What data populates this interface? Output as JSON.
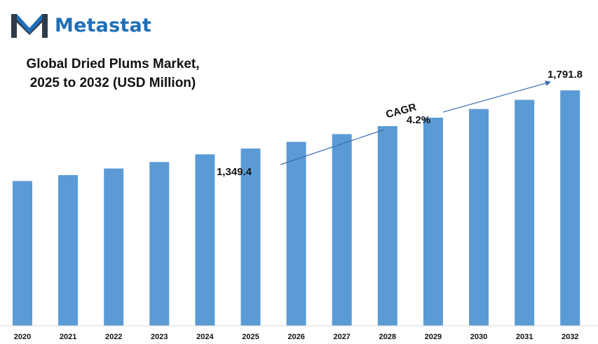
{
  "brand": {
    "name": "Metastat",
    "logo_icon": "metastat-m-logo-icon",
    "colors": {
      "dark": "#2e3b4a",
      "blue": "#1f6fb8"
    }
  },
  "title_lines": [
    "Global Dried Plums Market,",
    "2025 to 2032 (USD Million)"
  ],
  "annotations": {
    "start_label": "1,349.4",
    "end_label": "1,791.8",
    "cagr_label": "CAGR",
    "cagr_value": "4.2%"
  },
  "chart_data": {
    "type": "bar",
    "title": "Global Dried Plums Market, 2025 to 2032 (USD Million)",
    "categories": [
      "2020",
      "2021",
      "2022",
      "2023",
      "2024",
      "2025",
      "2026",
      "2027",
      "2028",
      "2029",
      "2030",
      "2031",
      "2032"
    ],
    "values": [
      1102,
      1147,
      1197,
      1246,
      1305,
      1349.4,
      1400,
      1459,
      1520,
      1584,
      1650,
      1720,
      1791.8
    ],
    "ylim": [
      0,
      1791.8
    ],
    "grid": false,
    "legend": "none",
    "bar_color": "#5b9bd5"
  }
}
